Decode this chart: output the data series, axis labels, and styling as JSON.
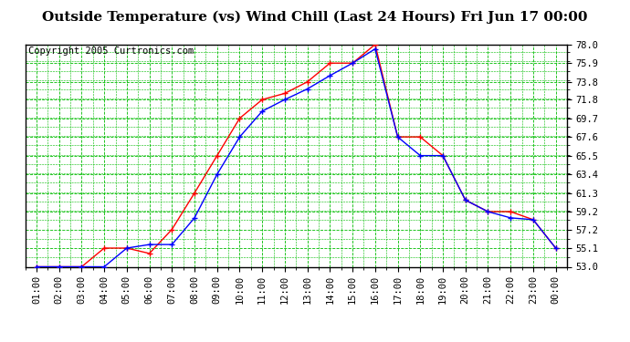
{
  "title": "Outside Temperature (vs) Wind Chill (Last 24 Hours) Fri Jun 17 00:00",
  "copyright": "Copyright 2005 Curtronics.com",
  "x_labels": [
    "01:00",
    "02:00",
    "03:00",
    "04:00",
    "05:00",
    "06:00",
    "07:00",
    "08:00",
    "09:00",
    "10:00",
    "11:00",
    "12:00",
    "13:00",
    "14:00",
    "15:00",
    "16:00",
    "17:00",
    "18:00",
    "19:00",
    "20:00",
    "21:00",
    "22:00",
    "23:00",
    "00:00"
  ],
  "outside_temp": [
    53.0,
    53.0,
    53.0,
    55.1,
    55.1,
    54.5,
    57.2,
    61.3,
    65.5,
    69.7,
    71.8,
    72.5,
    73.8,
    75.9,
    75.9,
    78.0,
    67.6,
    67.6,
    65.5,
    60.5,
    59.2,
    59.2,
    58.3,
    55.1
  ],
  "wind_chill": [
    53.0,
    53.0,
    53.0,
    53.0,
    55.1,
    55.5,
    55.5,
    58.5,
    63.4,
    67.6,
    70.5,
    71.8,
    73.0,
    74.5,
    75.9,
    77.5,
    67.6,
    65.5,
    65.5,
    60.5,
    59.2,
    58.5,
    58.3,
    55.1
  ],
  "ylim": [
    53.0,
    78.0
  ],
  "yticks": [
    53.0,
    55.1,
    57.2,
    59.2,
    61.3,
    63.4,
    65.5,
    67.6,
    69.7,
    71.8,
    73.8,
    75.9,
    78.0
  ],
  "outside_temp_color": "#ff0000",
  "wind_chill_color": "#0000ff",
  "bg_color": "#ffffff",
  "grid_color": "#00bb00",
  "title_fontsize": 11,
  "axis_label_fontsize": 7.5,
  "copyright_fontsize": 7.5
}
